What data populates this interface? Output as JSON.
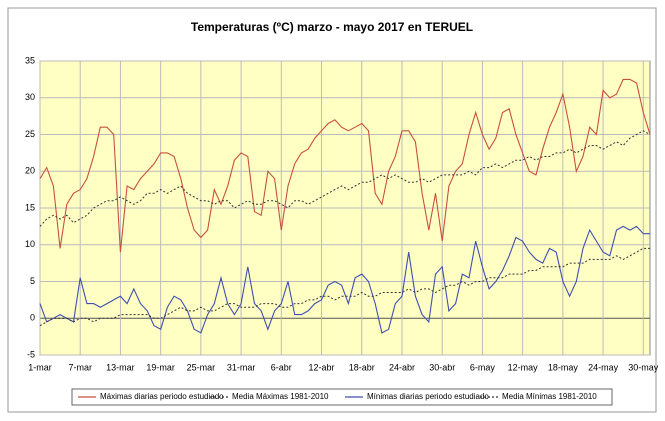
{
  "chart_data": {
    "type": "line",
    "title": "Temperaturas (ºC) marzo - mayo 2017 en TERUEL",
    "categories": [
      "1-mar",
      null,
      null,
      null,
      null,
      null,
      "7-mar",
      null,
      null,
      null,
      null,
      null,
      "13-mar",
      null,
      null,
      null,
      null,
      null,
      "19-mar",
      null,
      null,
      null,
      null,
      null,
      "25-mar",
      null,
      null,
      null,
      null,
      null,
      "31-mar",
      null,
      null,
      null,
      null,
      null,
      "6-abr",
      null,
      null,
      null,
      null,
      null,
      "12-abr",
      null,
      null,
      null,
      null,
      null,
      "18-abr",
      null,
      null,
      null,
      null,
      null,
      "24-abr",
      null,
      null,
      null,
      null,
      null,
      "30-abr",
      null,
      null,
      null,
      null,
      null,
      "6-may",
      null,
      null,
      null,
      null,
      null,
      "12-may",
      null,
      null,
      null,
      null,
      null,
      "18-may",
      null,
      null,
      null,
      null,
      null,
      "24-may",
      null,
      null,
      null,
      null,
      null,
      "30-may",
      null
    ],
    "series": [
      {
        "name": "Máximas diarias periodo estudiado",
        "color": "#c8503f",
        "dash": false,
        "values": [
          19,
          20.5,
          18,
          9.5,
          15.5,
          17,
          17.5,
          19,
          22,
          26,
          26,
          25,
          9,
          18,
          17.5,
          19,
          20,
          21,
          22.5,
          22.5,
          22,
          19,
          15,
          12,
          11,
          12,
          17.5,
          15.5,
          18,
          21.5,
          22.5,
          22,
          14.5,
          14,
          20,
          19,
          12,
          18,
          21,
          22.5,
          23,
          24.5,
          25.5,
          26.5,
          27,
          26,
          25.5,
          26,
          26.5,
          25.5,
          17,
          15.5,
          20,
          22,
          25.5,
          25.5,
          24,
          17,
          12,
          17,
          10.5,
          18,
          20,
          21,
          25,
          28,
          25,
          23,
          24.5,
          28,
          28.5,
          25,
          22.5,
          20,
          19.5,
          23,
          26,
          28,
          30.5,
          26,
          20,
          22,
          26,
          25,
          31,
          30,
          30.5,
          32.5,
          32.5,
          32,
          28,
          25
        ]
      },
      {
        "name": "Media Máximas 1981-2010",
        "color": "#333333",
        "dash": true,
        "values": [
          12.5,
          13.5,
          14,
          13.5,
          14,
          13,
          13.5,
          14,
          15,
          15.5,
          16,
          16,
          16.5,
          16,
          15.5,
          16,
          17,
          17,
          17.5,
          17,
          17.5,
          18,
          17,
          16.5,
          16,
          16,
          15.5,
          16,
          16,
          15,
          15.5,
          16,
          15.5,
          15.5,
          16,
          16,
          15.5,
          15,
          16,
          16,
          15.5,
          16,
          16.5,
          17,
          17.5,
          18,
          17.5,
          18,
          18.5,
          18.5,
          19,
          19.5,
          19,
          19.5,
          19,
          18.5,
          18.5,
          19,
          18.5,
          19,
          19.5,
          19.5,
          19.5,
          19.5,
          20,
          19.5,
          20.5,
          20.5,
          21,
          20.5,
          21,
          21.5,
          21.5,
          22,
          21.5,
          22,
          22,
          22.5,
          22.5,
          23,
          22.5,
          23,
          23.5,
          23.5,
          23,
          23.5,
          24,
          23.5,
          24.5,
          25,
          25.5,
          25
        ]
      },
      {
        "name": "Mínimas diarias periodo estudiado",
        "color": "#3e4fb0",
        "dash": false,
        "values": [
          2,
          -0.5,
          0,
          0.5,
          0,
          -0.5,
          5.5,
          2,
          2,
          1.5,
          2,
          2.5,
          3,
          2,
          4,
          2,
          1,
          -1,
          -1.5,
          1.5,
          3,
          2.5,
          1,
          -1.5,
          -2,
          0.5,
          2,
          5.5,
          2,
          0.5,
          2,
          7,
          2,
          1,
          -1.5,
          1,
          2,
          5,
          0.5,
          0.5,
          1,
          2,
          2.5,
          4.5,
          5,
          4.5,
          2,
          5.5,
          6,
          5,
          2,
          -2,
          -1.5,
          2,
          3,
          9,
          3,
          0.5,
          -0.5,
          6,
          7,
          1,
          2,
          6,
          5.5,
          10.5,
          7,
          4,
          5,
          6.5,
          8.5,
          11,
          10.5,
          9,
          8,
          7.5,
          9.5,
          9,
          5,
          3,
          5,
          9.5,
          12,
          10.5,
          9,
          8.5,
          12,
          12.5,
          12,
          12.5,
          11.5,
          11.5
        ]
      },
      {
        "name": "Media Mínimas 1981-2010",
        "color": "#333333",
        "dash": true,
        "values": [
          -1,
          -0.5,
          0,
          0,
          0,
          -0.5,
          0,
          0,
          -0.5,
          0,
          0,
          0,
          0.5,
          0.5,
          0.5,
          0.5,
          0.5,
          0,
          0,
          0.5,
          1,
          1.5,
          1,
          1,
          1.5,
          1,
          1,
          1.5,
          2,
          2,
          1.5,
          1.5,
          1.5,
          2,
          2,
          2,
          1.5,
          1.5,
          2,
          2,
          2.5,
          2.5,
          3,
          3,
          2.5,
          3,
          3,
          3,
          3.5,
          3,
          3,
          3.5,
          3.5,
          3.5,
          3.5,
          4,
          3.5,
          4,
          4,
          3.5,
          4,
          4.5,
          4.5,
          5,
          4.5,
          5,
          5,
          5.5,
          5.5,
          5.5,
          6,
          6,
          6,
          6.5,
          6.5,
          7,
          7,
          7,
          7,
          7.5,
          7.5,
          7.5,
          8,
          8,
          8,
          8,
          8.5,
          8,
          8.5,
          9,
          9.5,
          9.5
        ]
      }
    ],
    "ylim": [
      -5,
      35
    ],
    "yticks": [
      -5,
      0,
      5,
      10,
      15,
      20,
      25,
      30,
      35
    ],
    "grid": true,
    "legend": "bottom"
  }
}
